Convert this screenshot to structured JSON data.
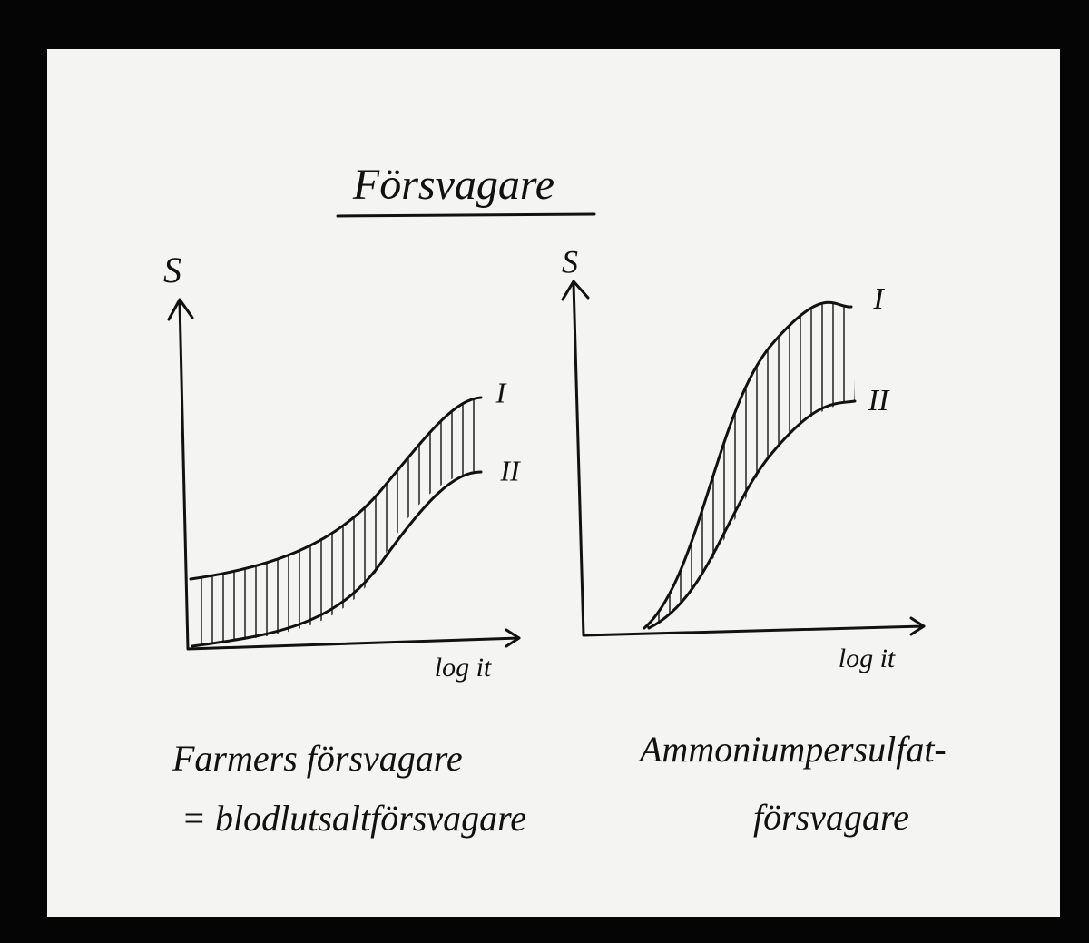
{
  "title": "Försvagare",
  "panels": [
    {
      "y_label": "S",
      "x_label": "log it",
      "curves": [
        "I",
        "II"
      ],
      "caption": [
        "Farmers försvagare",
        "= blodlutsaltförsvagare"
      ]
    },
    {
      "y_label": "S",
      "x_label": "log it",
      "curves": [
        "I",
        "II"
      ],
      "caption": [
        "Ammoniumpersulfat-",
        "försvagare"
      ]
    }
  ]
}
